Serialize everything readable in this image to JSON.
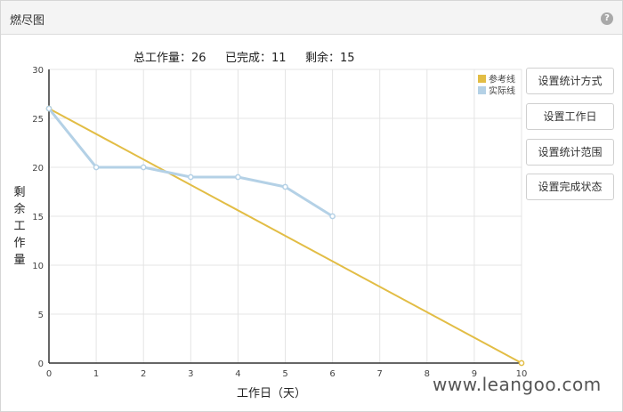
{
  "panel": {
    "title": "燃尽图",
    "help_icon": "question-circle-icon",
    "help_glyph": "?"
  },
  "summary": {
    "total_label": "总工作量：",
    "total_value": "26",
    "done_label": "已完成：",
    "done_value": "11",
    "remaining_label": "剩余：",
    "remaining_value": "15"
  },
  "buttons": {
    "stat_method": "设置统计方式",
    "work_days": "设置工作日",
    "stat_range": "设置统计范围",
    "done_status": "设置完成状态"
  },
  "watermark": "www.leangoo.com",
  "chart_data": {
    "type": "line",
    "xlabel": "工作日（天）",
    "ylabel": "剩余工作量",
    "xlim": [
      0,
      10
    ],
    "ylim": [
      0,
      30
    ],
    "x_ticks": [
      "0",
      "1",
      "2",
      "3",
      "4",
      "5",
      "6",
      "7",
      "8",
      "9",
      "10"
    ],
    "y_ticks": [
      "0",
      "5",
      "10",
      "15",
      "20",
      "25",
      "30"
    ],
    "grid": true,
    "legend_position": "top-right",
    "series": [
      {
        "name": "参考线",
        "color": "#e2bd45",
        "x": [
          0,
          10
        ],
        "y": [
          26,
          0
        ]
      },
      {
        "name": "实际线",
        "color": "#b4d1e6",
        "x": [
          0,
          1,
          2,
          3,
          4,
          5,
          6
        ],
        "y": [
          26,
          20,
          20,
          19,
          19,
          18,
          15
        ]
      }
    ]
  }
}
